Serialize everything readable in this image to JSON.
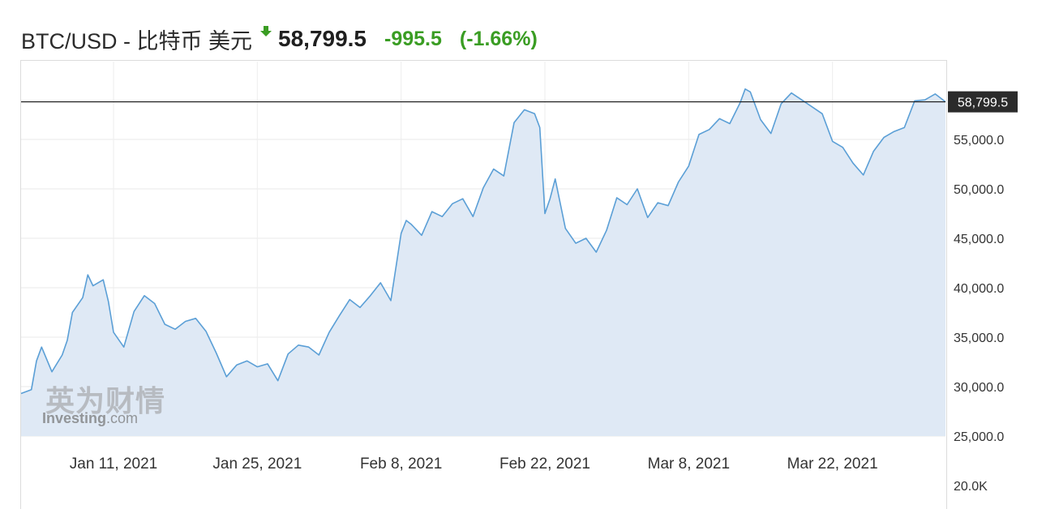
{
  "header": {
    "title": "BTC/USD - 比特币 美元",
    "price": "58,799.5",
    "change": "-995.5",
    "change_pct": "(-1.66%)",
    "arrow_icon": "green-down-arrow-icon"
  },
  "colors": {
    "line": "#5b9fd6",
    "area": "#dfe9f5",
    "positive_change": "#3a9d23",
    "price_tag_bg": "#2b2b2b",
    "grid": "#e8e8e8"
  },
  "watermark": {
    "cn": "英为财情",
    "en_brand": "Investing",
    "en_suffix": ".com"
  },
  "chart_data": {
    "type": "area",
    "ylim": [
      20000,
      62000
    ],
    "yticks": [
      {
        "value": 55000,
        "label": "55,000.0"
      },
      {
        "value": 50000,
        "label": "50,000.0"
      },
      {
        "value": 45000,
        "label": "45,000.0"
      },
      {
        "value": 40000,
        "label": "40,000.0"
      },
      {
        "value": 35000,
        "label": "35,000.0"
      },
      {
        "value": 30000,
        "label": "30,000.0"
      },
      {
        "value": 25000,
        "label": "25,000.0"
      },
      {
        "value": 20000,
        "label": "20.0K"
      }
    ],
    "xlim": [
      "2021-01-02",
      "2021-04-02"
    ],
    "xticks": [
      {
        "date": "2021-01-11",
        "label": "Jan 11, 2021"
      },
      {
        "date": "2021-01-25",
        "label": "Jan 25, 2021"
      },
      {
        "date": "2021-02-08",
        "label": "Feb 8, 2021"
      },
      {
        "date": "2021-02-22",
        "label": "Feb 22, 2021"
      },
      {
        "date": "2021-03-08",
        "label": "Mar 8, 2021"
      },
      {
        "date": "2021-03-22",
        "label": "Mar 22, 2021"
      }
    ],
    "current": {
      "value": 58799.5,
      "label": "58,799.5"
    },
    "series": [
      {
        "x": [
          "2021-01-02",
          "2021-01-03",
          "2021-01-03T12:00",
          "2021-01-04",
          "2021-01-05",
          "2021-01-06",
          "2021-01-06T12:00",
          "2021-01-07",
          "2021-01-08",
          "2021-01-08T12:00",
          "2021-01-09",
          "2021-01-10",
          "2021-01-10T12:00",
          "2021-01-11",
          "2021-01-12",
          "2021-01-13",
          "2021-01-14",
          "2021-01-15",
          "2021-01-16",
          "2021-01-17",
          "2021-01-18",
          "2021-01-19",
          "2021-01-20",
          "2021-01-21",
          "2021-01-22",
          "2021-01-23",
          "2021-01-24",
          "2021-01-25",
          "2021-01-26",
          "2021-01-27",
          "2021-01-28",
          "2021-01-29",
          "2021-01-30",
          "2021-01-31",
          "2021-02-01",
          "2021-02-02",
          "2021-02-03",
          "2021-02-04",
          "2021-02-05",
          "2021-02-06",
          "2021-02-07",
          "2021-02-08",
          "2021-02-08T12:00",
          "2021-02-09",
          "2021-02-10",
          "2021-02-11",
          "2021-02-12",
          "2021-02-13",
          "2021-02-14",
          "2021-02-15",
          "2021-02-16",
          "2021-02-17",
          "2021-02-18",
          "2021-02-19",
          "2021-02-20",
          "2021-02-21",
          "2021-02-21T12:00",
          "2021-02-22",
          "2021-02-22T12:00",
          "2021-02-23",
          "2021-02-24",
          "2021-02-25",
          "2021-02-26",
          "2021-02-27",
          "2021-02-28",
          "2021-03-01",
          "2021-03-02",
          "2021-03-03",
          "2021-03-04",
          "2021-03-05",
          "2021-03-06",
          "2021-03-07",
          "2021-03-08",
          "2021-03-09",
          "2021-03-10",
          "2021-03-11",
          "2021-03-12",
          "2021-03-13",
          "2021-03-13T12:00",
          "2021-03-14",
          "2021-03-15",
          "2021-03-16",
          "2021-03-17",
          "2021-03-18",
          "2021-03-19",
          "2021-03-20",
          "2021-03-21",
          "2021-03-22",
          "2021-03-23",
          "2021-03-24",
          "2021-03-25",
          "2021-03-26",
          "2021-03-27",
          "2021-03-28",
          "2021-03-29",
          "2021-03-30",
          "2021-03-31",
          "2021-04-01",
          "2021-04-02"
        ],
        "y": [
          29300,
          29700,
          32600,
          34000,
          31500,
          33200,
          34700,
          37500,
          39000,
          41300,
          40200,
          40800,
          38600,
          35500,
          34000,
          37600,
          39200,
          38400,
          36300,
          35800,
          36600,
          36900,
          35600,
          33400,
          31000,
          32200,
          32600,
          32000,
          32300,
          30600,
          33300,
          34200,
          34000,
          33200,
          35500,
          37200,
          38800,
          38000,
          39200,
          40500,
          38700,
          45500,
          46800,
          46400,
          45300,
          47700,
          47200,
          48500,
          49000,
          47200,
          50100,
          52000,
          51300,
          56700,
          58000,
          57600,
          56200,
          47500,
          49000,
          51000,
          46000,
          44500,
          45000,
          43600,
          45800,
          49100,
          48400,
          50000,
          47100,
          48600,
          48300,
          50700,
          52300,
          55500,
          56000,
          57100,
          56600,
          58700,
          60100,
          59800,
          57000,
          55600,
          58600,
          59700,
          59000,
          58300,
          57600,
          54800,
          54200,
          52600,
          51400,
          53800,
          55200,
          55800,
          56200,
          58900,
          59000,
          59600,
          58799.5
        ]
      }
    ]
  }
}
